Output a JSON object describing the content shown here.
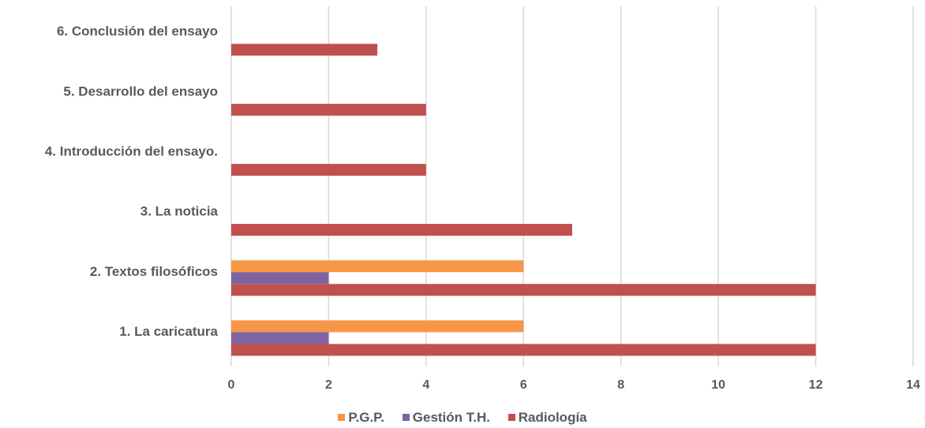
{
  "chart_data": {
    "type": "bar",
    "orientation": "horizontal",
    "categories": [
      "1. La caricatura",
      "2. Textos filosóficos",
      "3. La noticia",
      "4. Introducción del ensayo.",
      "5. Desarrollo del ensayo",
      "6. Conclusión del ensayo"
    ],
    "series": [
      {
        "name": "P.G.P.",
        "color": "#f79646",
        "values": [
          6,
          6,
          0,
          0,
          0,
          0
        ]
      },
      {
        "name": "Gestión T.H.",
        "color": "#8064a2",
        "values": [
          2,
          2,
          0,
          0,
          0,
          0
        ]
      },
      {
        "name": "Radiología",
        "color": "#c0504d",
        "values": [
          12,
          12,
          7,
          4,
          4,
          3
        ]
      }
    ],
    "xlim": [
      0,
      14
    ],
    "xticks": [
      "0",
      "2",
      "4",
      "6",
      "8",
      "10",
      "12",
      "14"
    ],
    "grid": true,
    "legend_position": "bottom"
  }
}
